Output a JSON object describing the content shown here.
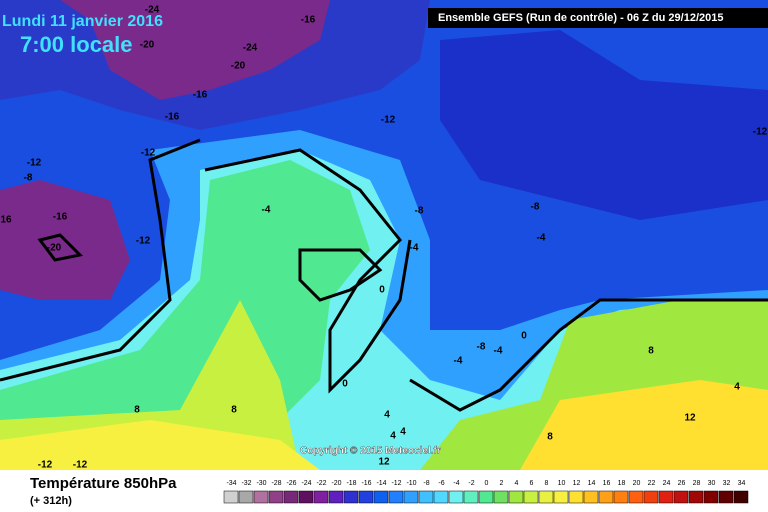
{
  "header": {
    "date": "Lundi 11 janvier 2016",
    "time": "7:00 locale",
    "run": "Ensemble GEFS  (Run de contrôle)  -  06 Z du 29/12/2015"
  },
  "copyright": "Copyright © 2015 Meteociel.fr",
  "legend": {
    "title": "Température 850hPa",
    "lead": "(+ 312h)",
    "ticks": [
      -34,
      -32,
      -30,
      -28,
      -26,
      -24,
      -22,
      -20,
      -18,
      -16,
      -14,
      -12,
      -10,
      -8,
      -6,
      -4,
      -2,
      0,
      2,
      4,
      6,
      8,
      10,
      12,
      14,
      16,
      18,
      20,
      22,
      24,
      26,
      28,
      30,
      32,
      34
    ],
    "colors": [
      "#d0d0d0",
      "#a8a8a8",
      "#b070a0",
      "#904088",
      "#782878",
      "#601060",
      "#8020a0",
      "#6020c0",
      "#3030d0",
      "#2040e0",
      "#1060f0",
      "#2080ff",
      "#30a0ff",
      "#40c0ff",
      "#50d8ff",
      "#70f0f0",
      "#60f0c0",
      "#50e890",
      "#70e060",
      "#a0e840",
      "#c8f040",
      "#e8f040",
      "#f8f040",
      "#ffe030",
      "#ffc020",
      "#ffa018",
      "#ff8010",
      "#ff6010",
      "#f04010",
      "#e02010",
      "#c01010",
      "#a00808",
      "#800000",
      "#600000",
      "#400000"
    ]
  },
  "map": {
    "contour_labels": [
      "-24",
      "-16",
      "-24",
      "-20",
      "-20",
      "-16",
      "-16",
      "-12",
      "-12",
      "-12",
      "-12",
      "-8",
      "-16",
      "16",
      "-12",
      "-20",
      "-4",
      "-8",
      "-8",
      "-4",
      "-4",
      "0",
      "0",
      "-8",
      "-4",
      "-4",
      "8",
      "0",
      "4",
      "8",
      "8",
      "4",
      "4",
      "4",
      "8",
      "12",
      "-12",
      "-12",
      "12"
    ]
  }
}
